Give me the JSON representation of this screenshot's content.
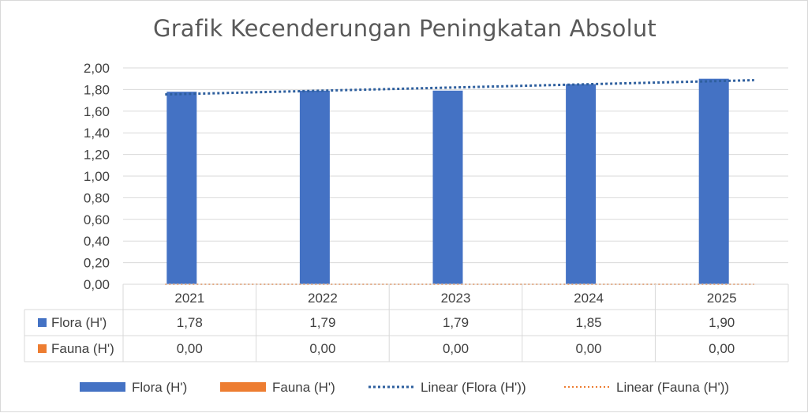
{
  "chart_data": {
    "type": "bar",
    "title": "Grafik Kecenderungan Peningkatan Absolut",
    "categories": [
      "2021",
      "2022",
      "2023",
      "2024",
      "2025"
    ],
    "series": [
      {
        "name": "Flora (H')",
        "values": [
          1.78,
          1.79,
          1.79,
          1.85,
          1.9
        ],
        "labels": [
          "1,78",
          "1,79",
          "1,79",
          "1,85",
          "1,90"
        ],
        "color": "#4472c4"
      },
      {
        "name": "Fauna (H')",
        "values": [
          0.0,
          0.0,
          0.0,
          0.0,
          0.0
        ],
        "labels": [
          "0,00",
          "0,00",
          "0,00",
          "0,00",
          "0,00"
        ],
        "color": "#ed7d31"
      }
    ],
    "trendlines": [
      {
        "name": "Linear (Flora (H'))",
        "type": "linear",
        "series": 0,
        "color": "#2e5f9e"
      },
      {
        "name": "Linear (Fauna (H'))",
        "type": "linear",
        "series": 1,
        "color": "#ed7d31"
      }
    ],
    "ylim": [
      0,
      2
    ],
    "yticks": [
      "0,00",
      "0,20",
      "0,40",
      "0,60",
      "0,80",
      "1,00",
      "1,20",
      "1,40",
      "1,60",
      "1,80",
      "2,00"
    ],
    "grid": true,
    "data_table": true,
    "legend_position": "bottom"
  }
}
